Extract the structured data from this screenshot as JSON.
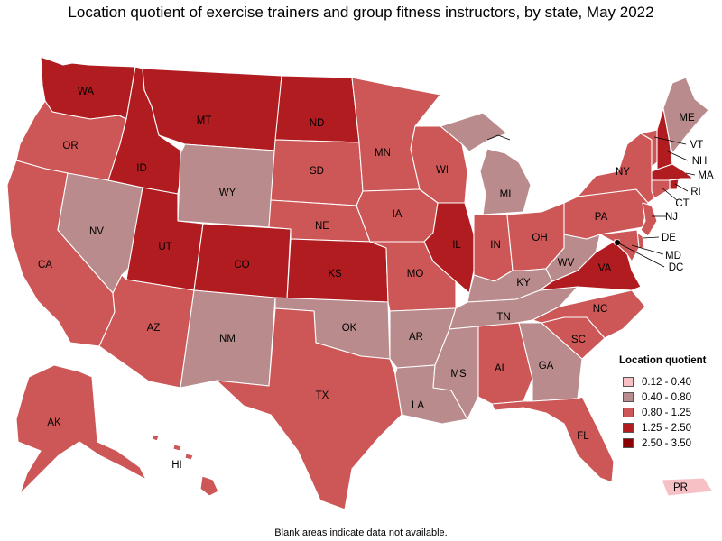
{
  "title": "Location quotient of exercise trainers and group fitness instructors, by state, May 2022",
  "footnote": "Blank areas indicate data not available.",
  "legend": {
    "title": "Location quotient",
    "items": [
      {
        "label": "0.12 - 0.40",
        "color": "#f7c0c4"
      },
      {
        "label": "0.40 - 0.80",
        "color": "#b98b8c"
      },
      {
        "label": "0.80 - 1.25",
        "color": "#cd5656"
      },
      {
        "label": "1.25 - 2.50",
        "color": "#b01c20"
      },
      {
        "label": "2.50 - 3.50",
        "color": "#8b0000"
      }
    ]
  },
  "states": [
    {
      "code": "WA",
      "class": 3
    },
    {
      "code": "OR",
      "class": 2
    },
    {
      "code": "CA",
      "class": 2
    },
    {
      "code": "ID",
      "class": 3
    },
    {
      "code": "NV",
      "class": 1
    },
    {
      "code": "MT",
      "class": 3
    },
    {
      "code": "WY",
      "class": 1
    },
    {
      "code": "UT",
      "class": 3
    },
    {
      "code": "AZ",
      "class": 2
    },
    {
      "code": "CO",
      "class": 3
    },
    {
      "code": "NM",
      "class": 1
    },
    {
      "code": "ND",
      "class": 3
    },
    {
      "code": "SD",
      "class": 2
    },
    {
      "code": "NE",
      "class": 2
    },
    {
      "code": "KS",
      "class": 3
    },
    {
      "code": "OK",
      "class": 1
    },
    {
      "code": "TX",
      "class": 2
    },
    {
      "code": "MN",
      "class": 2
    },
    {
      "code": "IA",
      "class": 2
    },
    {
      "code": "MO",
      "class": 2
    },
    {
      "code": "AR",
      "class": 1
    },
    {
      "code": "LA",
      "class": 1
    },
    {
      "code": "WI",
      "class": 2
    },
    {
      "code": "IL",
      "class": 3
    },
    {
      "code": "MI",
      "class": 1
    },
    {
      "code": "IN",
      "class": 2
    },
    {
      "code": "OH",
      "class": 2
    },
    {
      "code": "KY",
      "class": 1
    },
    {
      "code": "TN",
      "class": 1
    },
    {
      "code": "MS",
      "class": 1
    },
    {
      "code": "AL",
      "class": 2
    },
    {
      "code": "GA",
      "class": 1
    },
    {
      "code": "FL",
      "class": 2
    },
    {
      "code": "SC",
      "class": 2
    },
    {
      "code": "NC",
      "class": 2
    },
    {
      "code": "VA",
      "class": 3
    },
    {
      "code": "WV",
      "class": 1
    },
    {
      "code": "PA",
      "class": 2
    },
    {
      "code": "NY",
      "class": 2
    },
    {
      "code": "VT",
      "class": 2
    },
    {
      "code": "NH",
      "class": 3
    },
    {
      "code": "ME",
      "class": 1
    },
    {
      "code": "MA",
      "class": 3
    },
    {
      "code": "RI",
      "class": 3
    },
    {
      "code": "CT",
      "class": 2
    },
    {
      "code": "NJ",
      "class": 2
    },
    {
      "code": "DE",
      "class": 2
    },
    {
      "code": "MD",
      "class": 2
    },
    {
      "code": "DC",
      "class": 4
    },
    {
      "code": "AK",
      "class": 2
    },
    {
      "code": "HI",
      "class": 2
    },
    {
      "code": "PR",
      "class": 0
    }
  ]
}
